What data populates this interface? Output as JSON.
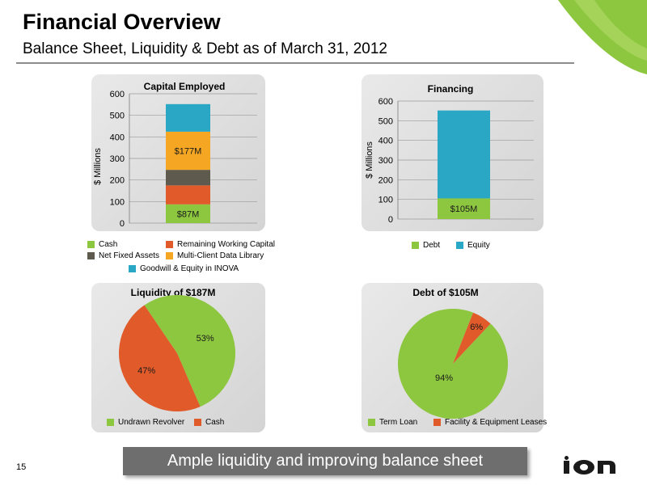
{
  "header": {
    "title": "Financial Overview",
    "subtitle": "Balance Sheet, Liquidity & Debt as of March 31, 2012"
  },
  "colors": {
    "green": "#8dc63f",
    "orange": "#e05a2a",
    "dark_gray": "#5e5a4e",
    "amber": "#f5a623",
    "teal": "#2ba7c6",
    "banner_bg": "#6e6e6e"
  },
  "chart_data": [
    {
      "type": "bar",
      "stacked": true,
      "title": "Capital Employed",
      "ylabel": "$ Millions",
      "ylim": [
        0,
        600
      ],
      "yticks": [
        "0",
        "100",
        "200",
        "300",
        "400",
        "500",
        "600"
      ],
      "series": [
        {
          "name": "Cash",
          "values": [
            87
          ],
          "color": "#8dc63f",
          "data_label": "$87M"
        },
        {
          "name": "Remaining Working Capital",
          "values": [
            88
          ],
          "color": "#e05a2a",
          "data_label": ""
        },
        {
          "name": "Net Fixed Assets",
          "values": [
            72
          ],
          "color": "#5e5a4e",
          "data_label": ""
        },
        {
          "name": "Multi-Client Data Library",
          "values": [
            177
          ],
          "color": "#f5a623",
          "data_label": "$177M"
        },
        {
          "name": "Goodwill & Equity in INOVA",
          "values": [
            128
          ],
          "color": "#2ba7c6",
          "data_label": ""
        }
      ],
      "legend": [
        "Cash",
        "Remaining Working Capital",
        "Net Fixed Assets",
        "Multi-Client Data Library",
        "Goodwill & Equity in INOVA"
      ]
    },
    {
      "type": "bar",
      "stacked": true,
      "title": "Financing",
      "ylabel": "$ Millions",
      "ylim": [
        0,
        600
      ],
      "yticks": [
        "0",
        "100",
        "200",
        "300",
        "400",
        "500",
        "600"
      ],
      "series": [
        {
          "name": "Debt",
          "values": [
            105
          ],
          "color": "#8dc63f",
          "data_label": "$105M"
        },
        {
          "name": "Equity",
          "values": [
            447
          ],
          "color": "#2ba7c6",
          "data_label": ""
        }
      ],
      "legend": [
        "Debt",
        "Equity"
      ]
    },
    {
      "type": "pie",
      "title": "Liquidity of $187M",
      "slices": [
        {
          "name": "Undrawn Revolver",
          "value": 53,
          "label": "53%",
          "color": "#8dc63f"
        },
        {
          "name": "Cash",
          "value": 47,
          "label": "47%",
          "color": "#e05a2a"
        }
      ],
      "legend": [
        "Undrawn Revolver",
        "Cash"
      ]
    },
    {
      "type": "pie",
      "title": "Debt of $105M",
      "slices": [
        {
          "name": "Term Loan",
          "value": 94,
          "label": "94%",
          "color": "#8dc63f"
        },
        {
          "name": "Facility & Equipment Leases",
          "value": 6,
          "label": "6%",
          "color": "#e05a2a"
        }
      ],
      "legend": [
        "Term Loan",
        "Facility & Equipment Leases"
      ]
    }
  ],
  "footer": {
    "page_number": "15",
    "banner_text": "Ample liquidity and improving balance sheet",
    "logo_text": "ion"
  }
}
